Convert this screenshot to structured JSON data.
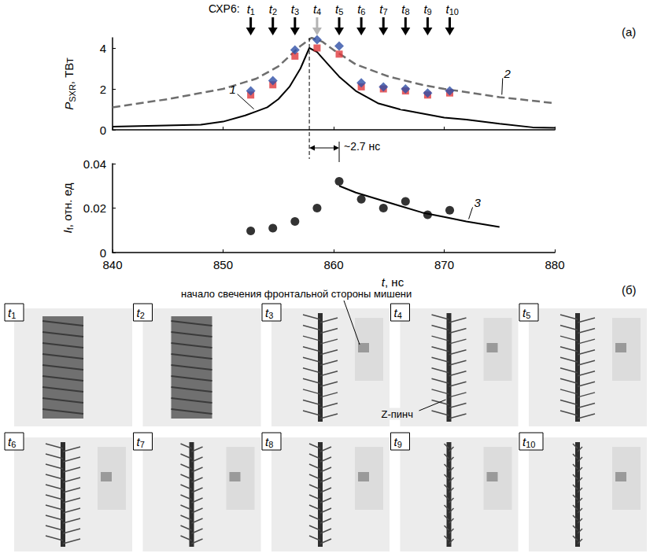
{
  "chart_data": [
    {
      "type": "line",
      "panel": "(a)",
      "y_label": {
        "main": "P",
        "sub": "SXR",
        "rest": ", ТВт"
      },
      "xlim": [
        840,
        880
      ],
      "xticks": [
        840,
        850,
        860,
        870,
        880
      ],
      "ylim": [
        0,
        4.5
      ],
      "yticks": [
        0,
        2,
        4
      ],
      "tick_labels": "y",
      "grid": false,
      "frame_group": "СХР6:",
      "frames": [
        {
          "main": "t",
          "sub": "1",
          "t": 852.5
        },
        {
          "main": "t",
          "sub": "2",
          "t": 854.5
        },
        {
          "main": "t",
          "sub": "3",
          "t": 856.5
        },
        {
          "main": "t",
          "sub": "4",
          "t": 858.5
        },
        {
          "main": "t",
          "sub": "5",
          "t": 860.5
        },
        {
          "main": "t",
          "sub": "6",
          "t": 862.5
        },
        {
          "main": "t",
          "sub": "7",
          "t": 864.5
        },
        {
          "main": "t",
          "sub": "8",
          "t": 866.5
        },
        {
          "main": "t",
          "sub": "9",
          "t": 868.5
        },
        {
          "main": "t",
          "sub": "10",
          "t": 870.5
        }
      ],
      "frame_colors": [
        "#000000",
        "#000000",
        "#000000",
        "#b4b4b4",
        "#000000",
        "#000000",
        "#000000",
        "#000000",
        "#000000",
        "#000000"
      ],
      "series": [
        {
          "name": "1",
          "type": "line",
          "color": "#000000",
          "line_style": "solid",
          "x": [
            840,
            844,
            848,
            850,
            852,
            853,
            854,
            855,
            856,
            857,
            857.8,
            858.5,
            859.5,
            860.5,
            862,
            864,
            866,
            868,
            870,
            872,
            875,
            878,
            880
          ],
          "values": [
            0.15,
            0.2,
            0.25,
            0.4,
            0.7,
            0.9,
            1.1,
            1.5,
            2.1,
            3.0,
            4.0,
            3.8,
            3.2,
            2.6,
            1.9,
            1.3,
            1.0,
            0.8,
            0.6,
            0.5,
            0.3,
            0.12,
            0.1
          ]
        },
        {
          "name": "2",
          "type": "line",
          "color": "#6e6e6e",
          "line_style": "dashed",
          "x": [
            840,
            845,
            850,
            853,
            855,
            857,
            858,
            859,
            860,
            862,
            865,
            868,
            870,
            875,
            880
          ],
          "values": [
            1.1,
            1.5,
            2.0,
            2.5,
            3.1,
            4.1,
            4.5,
            4.3,
            3.9,
            3.2,
            2.6,
            2.2,
            2.0,
            1.6,
            1.3
          ]
        },
        {
          "type": "scatter",
          "color": "#e0383c",
          "marker": "square",
          "x": [
            852.5,
            854.5,
            856.5,
            858.5,
            860.5,
            862.5,
            864.5,
            866.5,
            868.5,
            870.5
          ],
          "values": [
            1.7,
            2.2,
            3.6,
            4.0,
            3.7,
            2.1,
            2.0,
            1.9,
            1.7,
            1.8
          ]
        },
        {
          "type": "scatter",
          "color": "#2e4fa6",
          "marker": "diamond",
          "x": [
            852.5,
            854.5,
            856.5,
            858.5,
            860.5,
            862.5,
            864.5,
            866.5,
            868.5,
            870.5
          ],
          "values": [
            1.9,
            2.4,
            3.9,
            4.4,
            4.1,
            2.3,
            2.1,
            2.0,
            1.8,
            1.9
          ]
        }
      ],
      "peak": {
        "t": 857.8,
        "t_end": 860.5,
        "label": "~2.7 нс"
      }
    },
    {
      "type": "scatter",
      "x_label": {
        "main": "t",
        "rest": ", нс"
      },
      "y_label": {
        "main": "I",
        "sub": "f",
        "rest": ", отн. ед"
      },
      "xlim": [
        840,
        880
      ],
      "xticks": [
        840,
        850,
        860,
        870,
        880
      ],
      "ylim": [
        0,
        0.04
      ],
      "yticks": [
        0,
        0.02,
        0.04
      ],
      "grid": false,
      "series": [
        {
          "type": "scatter",
          "color": "#000000",
          "marker": "circle",
          "x": [
            852.5,
            854.5,
            856.5,
            858.5,
            860.5,
            862.5,
            864.5,
            866.5,
            868.5,
            870.5
          ],
          "values": [
            0.0097,
            0.011,
            0.014,
            0.02,
            0.032,
            0.024,
            0.02,
            0.023,
            0.017,
            0.019
          ]
        },
        {
          "name": "3",
          "type": "line",
          "color": "#000000",
          "line_style": "solid",
          "x": [
            860.5,
            862,
            864,
            866,
            868,
            870,
            872,
            875
          ],
          "values": [
            0.03,
            0.027,
            0.024,
            0.021,
            0.018,
            0.016,
            0.014,
            0.0115
          ]
        }
      ]
    }
  ],
  "images": {
    "label": "(б)",
    "note": "начало свечения фронтальной стороны мишени",
    "pinch_label": "Z-пинч"
  }
}
